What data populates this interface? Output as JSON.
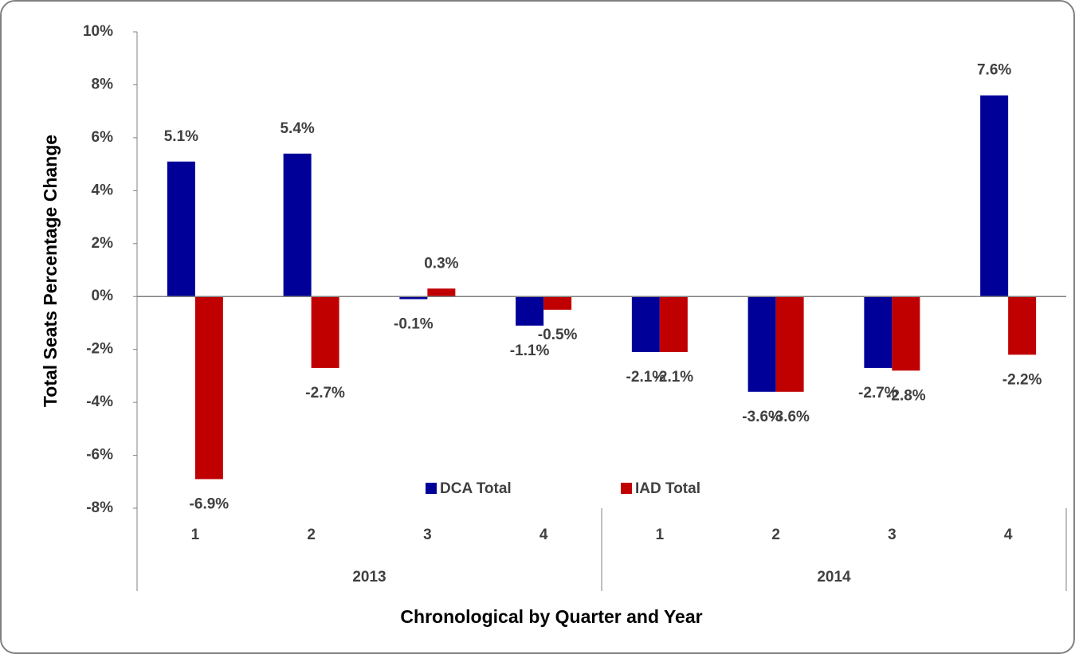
{
  "chart_data": {
    "type": "bar",
    "y_axis_label": "Total Seats Percentage Change",
    "x_axis_label": "Chronological by Quarter and Year",
    "categories": [
      "1",
      "2",
      "3",
      "4",
      "1",
      "2",
      "3",
      "4"
    ],
    "groups": [
      "2013",
      "2014"
    ],
    "series": [
      {
        "name": "DCA Total",
        "color": "#000099",
        "values": [
          5.1,
          5.4,
          -0.1,
          -1.1,
          -2.1,
          -3.6,
          -2.7,
          7.6
        ],
        "value_labels": [
          "5.1%",
          "5.4%",
          "-0.1%",
          "-1.1%",
          "-2.1%",
          "-3.6%",
          "-2.7%",
          "7.6%"
        ]
      },
      {
        "name": "IAD Total",
        "color": "#c00000",
        "values": [
          -6.9,
          -2.7,
          0.3,
          -0.5,
          -2.1,
          -3.6,
          -2.8,
          -2.2
        ],
        "value_labels": [
          "-6.9%",
          "-2.7%",
          "0.3%",
          "-0.5%",
          "-2.1%",
          "-3.6%",
          "-2.8%",
          "-2.2%"
        ]
      }
    ],
    "ylim": [
      -8,
      10
    ],
    "yticks": [
      {
        "value": -8,
        "label": "-8%"
      },
      {
        "value": -6,
        "label": "-6%"
      },
      {
        "value": -4,
        "label": "-4%"
      },
      {
        "value": -2,
        "label": "-2%"
      },
      {
        "value": 0,
        "label": "0%"
      },
      {
        "value": 2,
        "label": "2%"
      },
      {
        "value": 4,
        "label": "4%"
      },
      {
        "value": 6,
        "label": "6%"
      },
      {
        "value": 8,
        "label": "8%"
      },
      {
        "value": 10,
        "label": "10%"
      }
    ],
    "legend": "bottom"
  }
}
